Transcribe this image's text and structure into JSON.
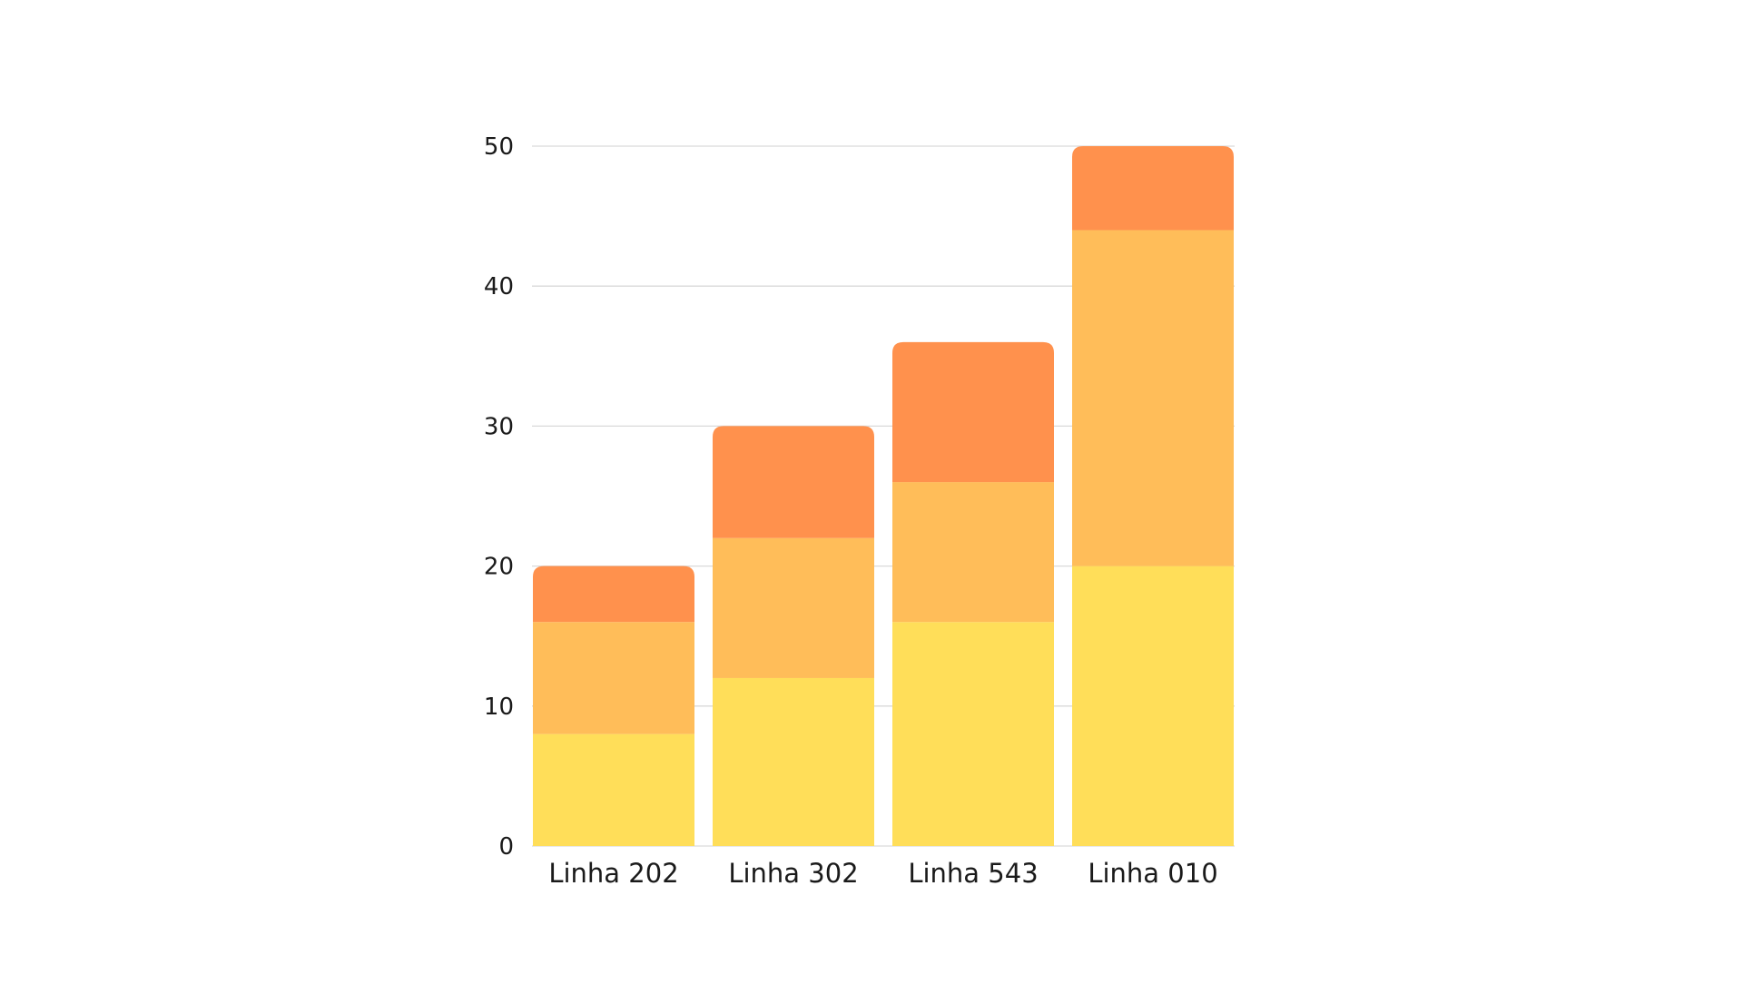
{
  "chart_data": {
    "type": "bar",
    "stacked": true,
    "categories": [
      "Linha 202",
      "Linha 302",
      "Linha 543",
      "Linha 010"
    ],
    "series": [
      {
        "values": [
          8,
          12,
          16,
          20
        ],
        "color": "#FFDE59"
      },
      {
        "values": [
          8,
          10,
          10,
          24
        ],
        "color": "#FFBD59"
      },
      {
        "values": [
          4,
          8,
          10,
          6
        ],
        "color": "#FF914D"
      }
    ],
    "title": "",
    "xlabel": "",
    "ylabel": "",
    "ylim": [
      0,
      50
    ],
    "yticks": [
      0,
      10,
      20,
      30,
      40,
      50
    ],
    "grid": true,
    "legend": "none"
  }
}
